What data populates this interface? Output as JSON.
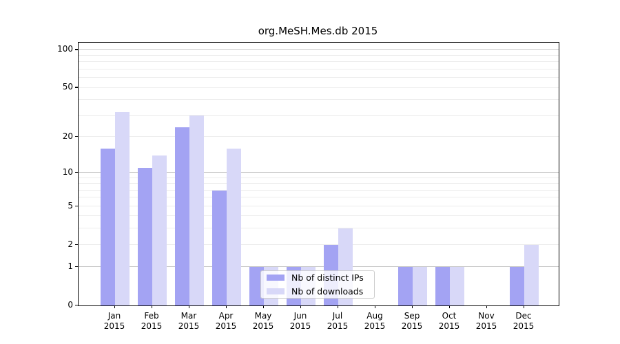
{
  "title": "org.MeSH.Mes.db 2015",
  "legend": {
    "items": [
      {
        "label": "Nb of distinct IPs",
        "color": "#a3a3f3"
      },
      {
        "label": "Nb of downloads",
        "color": "#d8d8f8"
      }
    ]
  },
  "chart_data": {
    "type": "bar",
    "title": "org.MeSH.Mes.db 2015",
    "categories": [
      "Jan 2015",
      "Feb 2015",
      "Mar 2015",
      "Apr 2015",
      "May 2015",
      "Jun 2015",
      "Jul 2015",
      "Aug 2015",
      "Sep 2015",
      "Oct 2015",
      "Nov 2015",
      "Dec 2015"
    ],
    "series": [
      {
        "name": "Nb of distinct IPs",
        "color": "#a3a3f3",
        "values": [
          16,
          11,
          24,
          7,
          1,
          1,
          2,
          0,
          1,
          1,
          0,
          1
        ]
      },
      {
        "name": "Nb of downloads",
        "color": "#d8d8f8",
        "values": [
          32,
          14,
          30,
          16,
          1,
          1,
          3,
          0,
          1,
          1,
          0,
          2
        ]
      }
    ],
    "xlabel": "",
    "ylabel": "",
    "yscale": "log1p",
    "ylim": [
      0,
      114
    ],
    "y_tick_labels": [
      100,
      50,
      20,
      10,
      5,
      2,
      1,
      0
    ],
    "y_minor_gridlines": [
      2,
      3,
      4,
      5,
      6,
      7,
      8,
      9,
      20,
      30,
      40,
      50,
      60,
      70,
      80,
      90
    ],
    "y_major_gridlines": [
      1,
      10,
      100
    ],
    "grid": "horizontal",
    "legend_position": "inside-bottom-center"
  }
}
